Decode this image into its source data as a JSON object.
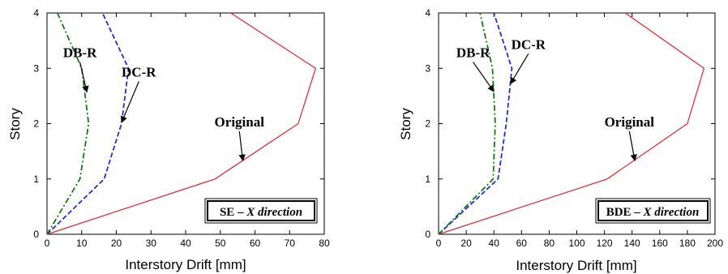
{
  "chart_data": [
    {
      "type": "line",
      "xlabel": "Interstory Drift [mm]",
      "ylabel": "Story",
      "xlim": [
        0,
        80
      ],
      "ylim": [
        0,
        4
      ],
      "xticks": [
        0,
        10,
        20,
        30,
        40,
        50,
        60,
        70,
        80
      ],
      "yticks": [
        0,
        1,
        2,
        3,
        4
      ],
      "grid": false,
      "box_label": {
        "main": "SE – ",
        "italic": "X direction"
      },
      "series": [
        {
          "name": "Original",
          "color": "#e8202a",
          "dash": "solid",
          "x": [
            0,
            48.5,
            72.5,
            77.5,
            53
          ],
          "y": [
            0,
            1,
            2,
            3,
            4
          ]
        },
        {
          "name": "DC-R",
          "color": "#1f2fd6",
          "dash": "dashed",
          "x": [
            0,
            16.5,
            21.5,
            23.5,
            16
          ],
          "y": [
            0,
            1,
            2,
            3,
            4
          ]
        },
        {
          "name": "DB-R",
          "color": "#127a12",
          "dash": "dashdot",
          "x": [
            0,
            9.5,
            12,
            10,
            3
          ],
          "y": [
            0,
            1,
            2,
            3,
            4
          ]
        }
      ],
      "annotations": [
        {
          "text": "DB-R",
          "text_at": [
            9.5,
            3.2
          ],
          "arrow_to": [
            11.5,
            2.57
          ]
        },
        {
          "text": "DC-R",
          "text_at": [
            26.5,
            2.85
          ],
          "arrow_to": [
            21.5,
            2.02
          ]
        },
        {
          "text": "Original",
          "text_at": [
            55.5,
            1.95
          ],
          "arrow_to": [
            56.5,
            1.33
          ]
        }
      ]
    },
    {
      "type": "line",
      "xlabel": "Interstory Drift [mm]",
      "ylabel": "Story",
      "xlim": [
        0,
        200
      ],
      "ylim": [
        0,
        4
      ],
      "xticks": [
        0,
        20,
        40,
        60,
        80,
        100,
        120,
        140,
        160,
        180,
        200
      ],
      "yticks": [
        0,
        1,
        2,
        3,
        4
      ],
      "grid": false,
      "box_label": {
        "main": "BDE – ",
        "italic": "X direction"
      },
      "series": [
        {
          "name": "Original",
          "color": "#e8202a",
          "dash": "solid",
          "x": [
            0,
            122,
            180,
            192,
            135
          ],
          "y": [
            0,
            1,
            2,
            3,
            4
          ]
        },
        {
          "name": "DC-R",
          "color": "#1f2fd6",
          "dash": "dashed",
          "x": [
            0,
            43,
            49,
            53,
            40
          ],
          "y": [
            0,
            1,
            2,
            3,
            4
          ]
        },
        {
          "name": "DB-R",
          "color": "#127a12",
          "dash": "dashdot",
          "x": [
            0,
            39.5,
            41,
            39,
            30
          ],
          "y": [
            0,
            1,
            2,
            3,
            4
          ]
        }
      ],
      "annotations": [
        {
          "text": "DB-R",
          "text_at": [
            25,
            3.2
          ],
          "arrow_to": [
            40,
            2.58
          ]
        },
        {
          "text": "DC-R",
          "text_at": [
            65,
            3.35
          ],
          "arrow_to": [
            52,
            2.72
          ]
        },
        {
          "text": "Original",
          "text_at": [
            138,
            1.95
          ],
          "arrow_to": [
            142,
            1.33
          ]
        }
      ]
    }
  ]
}
